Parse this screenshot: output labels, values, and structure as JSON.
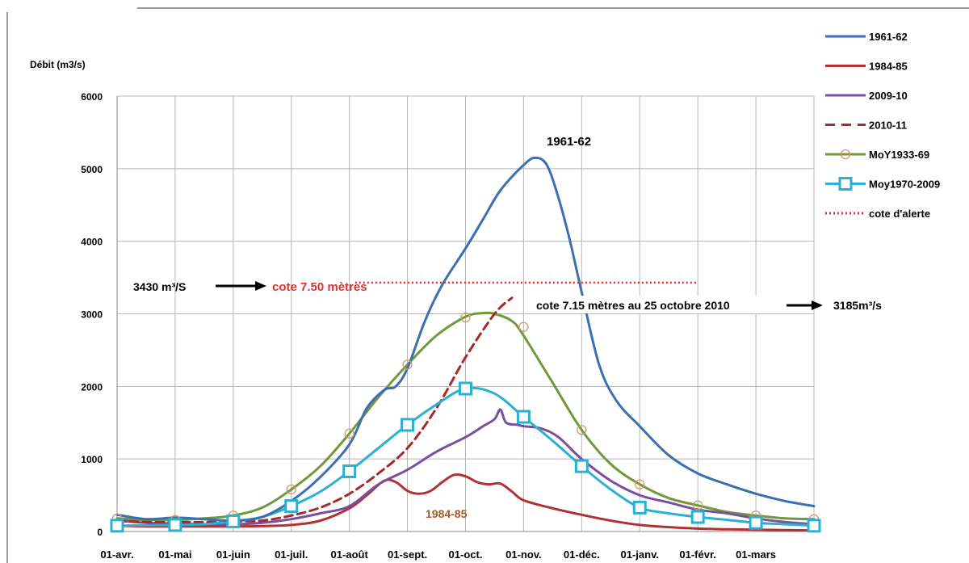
{
  "chart_data": {
    "type": "line",
    "ylabel": "Débit (m3/s)",
    "ylim": [
      0,
      6000
    ],
    "yticks": [
      0,
      1000,
      2000,
      3000,
      4000,
      5000,
      6000
    ],
    "ytick_labels": [
      "0",
      "1000",
      "2000",
      "3000",
      "4000",
      "5000",
      "6000"
    ],
    "xlim": [
      0,
      12
    ],
    "xtick_labels": [
      "01-avr.",
      "01-mai",
      "01-juin",
      "01-juil.",
      "01-août",
      "01-sept.",
      "01-oct.",
      "01-nov.",
      "01-déc.",
      "01-janv.",
      "01-févr.",
      "01-mars"
    ],
    "grid": "vertical and horizontal",
    "legend_position": "right",
    "series": [
      {
        "name": "1961-62",
        "color": "#3a6fb0",
        "style": "solid",
        "x": [
          0,
          0.5,
          1,
          1.5,
          2,
          2.5,
          3,
          3.5,
          4,
          4.3,
          4.6,
          4.8,
          5,
          5.3,
          5.6,
          6,
          6.3,
          6.6,
          7,
          7.2,
          7.4,
          7.6,
          7.8,
          8,
          8.3,
          8.6,
          9,
          9.5,
          10,
          10.5,
          11,
          11.5,
          12
        ],
        "values": [
          230,
          170,
          190,
          170,
          150,
          200,
          420,
          750,
          1200,
          1700,
          1950,
          2000,
          2250,
          2900,
          3400,
          3900,
          4300,
          4700,
          5050,
          5150,
          5050,
          4600,
          4000,
          3300,
          2300,
          1800,
          1450,
          1050,
          800,
          650,
          520,
          420,
          350
        ]
      },
      {
        "name": "1984-85",
        "color": "#b03232",
        "style": "solid",
        "x": [
          0,
          0.5,
          1,
          1.5,
          2,
          2.5,
          3,
          3.5,
          4,
          4.3,
          4.6,
          4.8,
          5,
          5.2,
          5.4,
          5.6,
          5.8,
          6,
          6.2,
          6.4,
          6.6,
          6.8,
          7,
          7.5,
          8,
          8.5,
          9,
          9.5,
          10,
          10.5,
          11,
          11.5,
          12
        ],
        "values": [
          80,
          70,
          70,
          70,
          70,
          75,
          90,
          150,
          320,
          500,
          700,
          680,
          560,
          520,
          560,
          680,
          780,
          760,
          680,
          650,
          660,
          550,
          430,
          320,
          230,
          150,
          90,
          60,
          40,
          30,
          25,
          20,
          15
        ]
      },
      {
        "name": "2009-10",
        "color": "#7a4f9e",
        "style": "solid",
        "x": [
          0,
          0.5,
          1,
          1.5,
          2,
          2.5,
          3,
          3.5,
          4,
          4.5,
          5,
          5.5,
          6,
          6.3,
          6.5,
          6.6,
          6.7,
          6.9,
          7,
          7.3,
          7.6,
          8,
          8.5,
          9,
          9.5,
          10,
          10.5,
          11,
          11.5,
          12
        ],
        "values": [
          150,
          120,
          110,
          100,
          100,
          120,
          170,
          250,
          350,
          650,
          850,
          1100,
          1300,
          1450,
          1550,
          1680,
          1500,
          1470,
          1450,
          1420,
          1300,
          1000,
          700,
          500,
          400,
          300,
          250,
          180,
          130,
          100
        ]
      },
      {
        "name": "2010-11",
        "color": "#a52a2a",
        "style": "dashed",
        "x": [
          0,
          0.5,
          1,
          1.5,
          2,
          2.5,
          3,
          3.5,
          4,
          4.5,
          5,
          5.5,
          6,
          6.5,
          6.8
        ],
        "values": [
          150,
          130,
          130,
          130,
          140,
          150,
          220,
          330,
          520,
          800,
          1150,
          1700,
          2400,
          3000,
          3220
        ]
      },
      {
        "name": "MoY1933-69",
        "color": "#6f9a3b",
        "style": "solid",
        "marker": "circle",
        "x": [
          0,
          0.5,
          1,
          1.5,
          2,
          2.5,
          3,
          3.5,
          4,
          4.5,
          5,
          5.5,
          6,
          6.3,
          6.5,
          6.8,
          7,
          7.5,
          8,
          8.5,
          9,
          9.5,
          10,
          10.5,
          11,
          11.5,
          12
        ],
        "values": [
          180,
          160,
          160,
          180,
          220,
          330,
          580,
          900,
          1350,
          1850,
          2300,
          2700,
          2960,
          3010,
          3000,
          2900,
          2700,
          2050,
          1400,
          930,
          650,
          460,
          360,
          270,
          220,
          180,
          170
        ],
        "markers_x": [
          0,
          1,
          2,
          3,
          4,
          5,
          6,
          7,
          8,
          9,
          10,
          11,
          12
        ],
        "markers_y": [
          180,
          160,
          220,
          580,
          1350,
          2300,
          2950,
          2820,
          1400,
          650,
          360,
          220,
          170
        ]
      },
      {
        "name": "Moy1970-2009",
        "color": "#2bb0d0",
        "style": "solid",
        "marker": "square",
        "x": [
          0,
          0.5,
          1,
          1.5,
          2,
          2.5,
          3,
          3.5,
          4,
          4.5,
          5,
          5.5,
          6,
          6.5,
          7,
          7.5,
          8,
          8.5,
          9,
          9.5,
          10,
          10.5,
          11,
          11.5,
          12
        ],
        "values": [
          80,
          85,
          90,
          100,
          140,
          200,
          350,
          550,
          830,
          1150,
          1470,
          1750,
          1970,
          1900,
          1580,
          1250,
          900,
          580,
          330,
          250,
          200,
          160,
          120,
          100,
          80
        ],
        "markers_x": [
          0,
          1,
          2,
          3,
          4,
          5,
          6,
          7,
          8,
          9,
          10,
          11,
          12
        ],
        "markers_y": [
          80,
          90,
          140,
          350,
          830,
          1470,
          1970,
          1580,
          900,
          330,
          200,
          120,
          80
        ]
      }
    ],
    "threshold": {
      "name": "cote d'alerte",
      "color": "#e03030",
      "style": "dotted",
      "value": 3430,
      "x_range": [
        4.1,
        10
      ]
    },
    "annotations": {
      "peak_label": "1961-62",
      "low_label": "1984-85",
      "alert_flow": "3430 m³/S",
      "alert_level": "cote 7.50 mètres",
      "observed_level": "cote 7.15 mètres au 25 octobre 2010",
      "observed_flow": "3185m³/s"
    }
  }
}
